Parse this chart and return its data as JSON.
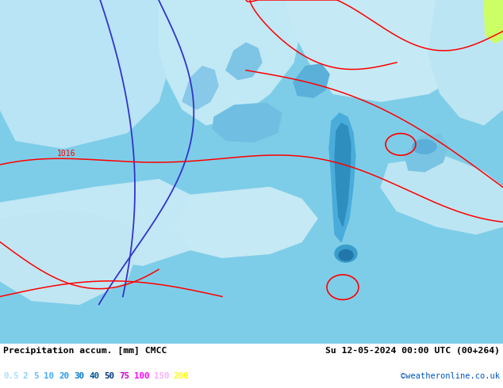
{
  "title_left": "Precipitation accum. [mm] CMCC",
  "title_right": "Su 12-05-2024 00:00 UTC (00+264)",
  "watermark": "©weatheronline.co.uk",
  "legend_values": [
    "0.5",
    "2",
    "5",
    "10",
    "20",
    "30",
    "40",
    "50",
    "75",
    "100",
    "150",
    "200"
  ],
  "legend_colors": [
    "#aaddff",
    "#88ccff",
    "#66bbff",
    "#44aaff",
    "#2299ee",
    "#0077cc",
    "#005599",
    "#003377",
    "#cc00cc",
    "#ff00ff",
    "#ffaaff",
    "#ffff00"
  ],
  "bg_color": "#78cfea",
  "figsize": [
    6.34,
    4.9
  ],
  "dpi": 100,
  "map_bg": "#7ecde8",
  "precip_light": "#b0dff0",
  "precip_med": "#88c8e8",
  "precip_dark": "#4499cc",
  "precip_darker": "#2277aa",
  "precip_darkest": "#1166aa"
}
